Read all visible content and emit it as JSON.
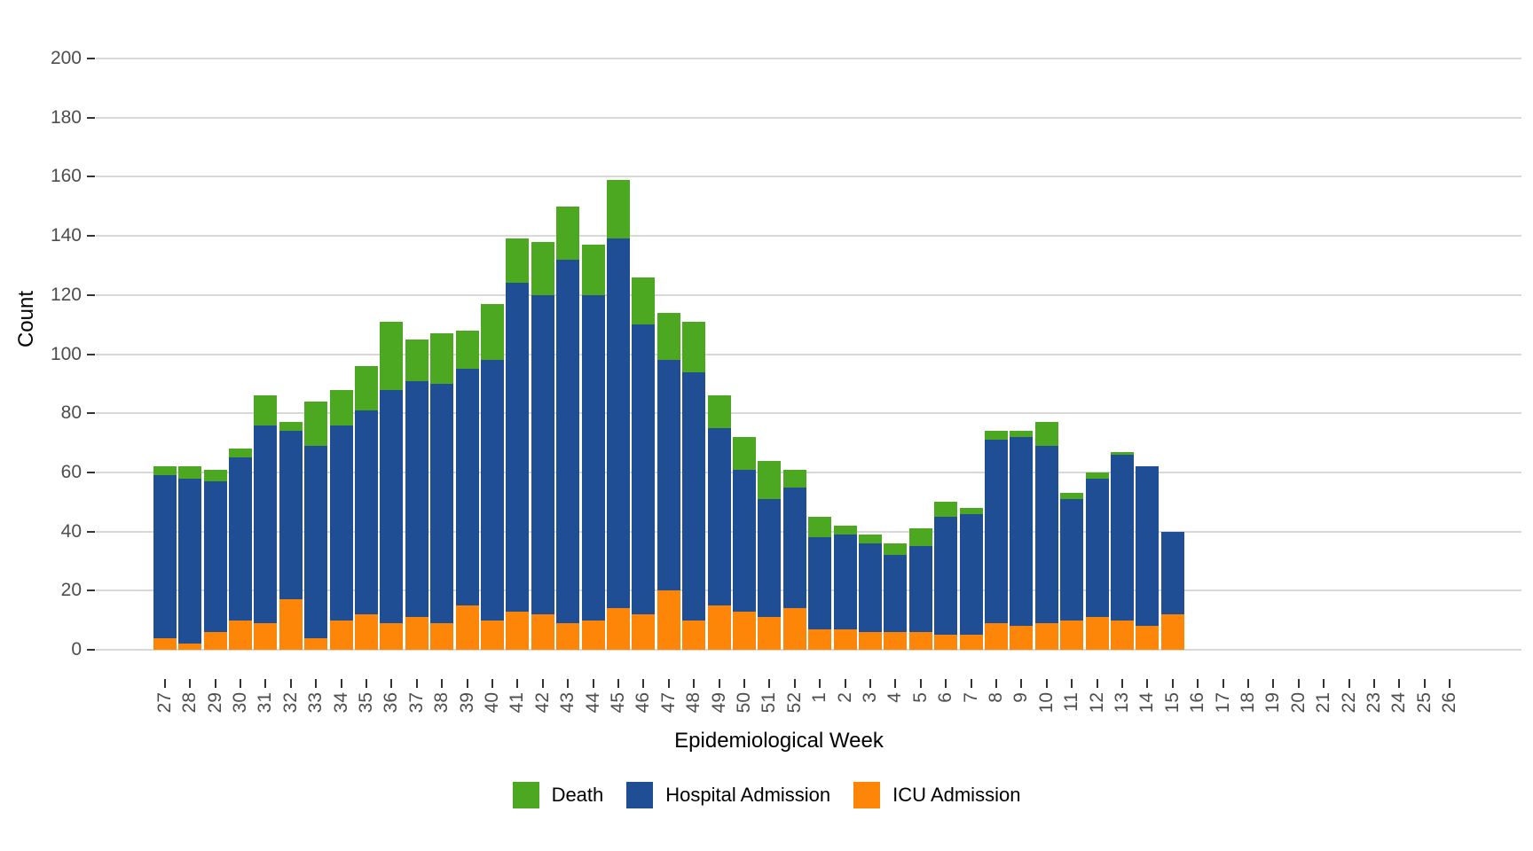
{
  "chart_data": {
    "type": "bar",
    "stacked": true,
    "title": "",
    "xlabel": "Epidemiological Week",
    "ylabel": "Count",
    "ylim": [
      0,
      200
    ],
    "yticks": [
      0,
      20,
      40,
      60,
      80,
      100,
      120,
      140,
      160,
      180,
      200
    ],
    "grid": "horizontal-only",
    "legend_position": "bottom",
    "categories": [
      "27",
      "28",
      "29",
      "30",
      "31",
      "32",
      "33",
      "34",
      "35",
      "36",
      "37",
      "38",
      "39",
      "40",
      "41",
      "42",
      "43",
      "44",
      "45",
      "46",
      "47",
      "48",
      "49",
      "50",
      "51",
      "52",
      "1",
      "2",
      "3",
      "4",
      "5",
      "6",
      "7",
      "8",
      "9",
      "10",
      "11",
      "12",
      "13",
      "14",
      "15",
      "16",
      "17",
      "18",
      "19",
      "20",
      "21",
      "22",
      "23",
      "24",
      "25",
      "26"
    ],
    "series": [
      {
        "name": "ICU Admission",
        "color": "#FD8508",
        "values": [
          4,
          2,
          6,
          10,
          9,
          17,
          4,
          10,
          12,
          9,
          11,
          9,
          15,
          10,
          13,
          12,
          9,
          10,
          14,
          12,
          20,
          10,
          15,
          13,
          11,
          14,
          7,
          7,
          6,
          6,
          6,
          5,
          5,
          9,
          8,
          9,
          10,
          11,
          10,
          8,
          12,
          0,
          0,
          0,
          0,
          0,
          0,
          0,
          0,
          0,
          0,
          0
        ]
      },
      {
        "name": "Hospital Admission",
        "color": "#1F4E95",
        "values": [
          55,
          56,
          51,
          55,
          67,
          57,
          65,
          66,
          69,
          79,
          80,
          81,
          80,
          88,
          111,
          108,
          123,
          110,
          125,
          98,
          78,
          84,
          60,
          48,
          40,
          41,
          31,
          32,
          30,
          26,
          29,
          40,
          41,
          62,
          64,
          60,
          41,
          47,
          56,
          54,
          28,
          0,
          0,
          0,
          0,
          0,
          0,
          0,
          0,
          0,
          0,
          0
        ]
      },
      {
        "name": "Death",
        "color": "#4CA820",
        "values": [
          3,
          4,
          4,
          3,
          10,
          3,
          15,
          12,
          15,
          23,
          14,
          17,
          13,
          19,
          15,
          18,
          18,
          17,
          20,
          16,
          16,
          17,
          11,
          11,
          13,
          6,
          7,
          3,
          3,
          4,
          6,
          5,
          2,
          3,
          2,
          8,
          2,
          2,
          1,
          0,
          0,
          0,
          0,
          0,
          0,
          0,
          0,
          0,
          0,
          0,
          0,
          0
        ]
      }
    ],
    "legend_items": [
      {
        "label": "Death",
        "color": "#4CA820"
      },
      {
        "label": "Hospital Admission",
        "color": "#1F4E95"
      },
      {
        "label": "ICU Admission",
        "color": "#FD8508"
      }
    ],
    "colors": {
      "gridline": "#d8d8d8",
      "tick": "#333333",
      "tick_label": "#4d4d4d",
      "background": "#ffffff"
    }
  }
}
